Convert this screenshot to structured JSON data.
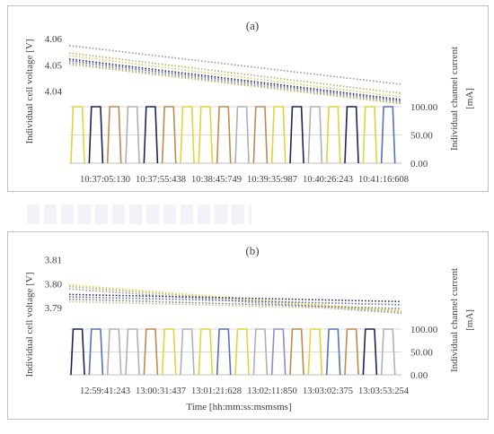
{
  "chart_data": [
    {
      "type": "line",
      "title": "(a)",
      "ylabel": "Individual cell voltage [V]",
      "y2label_line1": "Individual channel current",
      "y2label_line2": "[mA]",
      "xlabel": "",
      "voltage_ticks": [
        "4.06",
        "4.05",
        "4.04"
      ],
      "voltage_range": [
        4.028,
        4.062
      ],
      "current_ticks": [
        "100.00",
        "50.00",
        "0.00"
      ],
      "current_range": [
        0,
        100
      ],
      "x_ticks": [
        "10:37:05:130",
        "10:37:55:438",
        "10:38:45:749",
        "10:39:35:987",
        "10:40:26:243",
        "10:41:16:608"
      ],
      "voltage_series": [
        {
          "color": "#9e8fa6",
          "start": 4.0573,
          "end": 4.0426
        },
        {
          "color": "#b8ac6e",
          "start": 4.0545,
          "end": 4.0392
        },
        {
          "color": "#d6cf5a",
          "start": 4.0535,
          "end": 4.0378
        },
        {
          "color": "#1f2a5c",
          "start": 4.0522,
          "end": 4.0368
        },
        {
          "color": "#5566a8",
          "start": 4.0515,
          "end": 4.0362
        },
        {
          "color": "#9a9a9a",
          "start": 4.0508,
          "end": 4.0356
        },
        {
          "color": "#c9b25a",
          "start": 4.0502,
          "end": 4.0352
        }
      ],
      "current_pulse_colors": [
        "#e3d33a",
        "#1a2456",
        "#c08a4e",
        "#b1b1b1",
        "#1a2456",
        "#c08a4e",
        "#e3d33a",
        "#e3d33a",
        "#c08a4e",
        "#b1b1b1",
        "#c08a4e",
        "#e3d33a",
        "#1a2456",
        "#b1b1b1",
        "#e3d33a",
        "#1a2456",
        "#e3d33a",
        "#5572b8"
      ],
      "current_pulse_value": 100
    },
    {
      "type": "line",
      "title": "(b)",
      "ylabel": "Individual cell voltage [V]",
      "y2label_line1": "Individual channel current",
      "y2label_line2": "[mA]",
      "xlabel": "Time [hh:mm:ss:msmsms]",
      "voltage_ticks": [
        "3.81",
        "3.80",
        "3.79"
      ],
      "voltage_range": [
        3.7855,
        3.8125
      ],
      "current_ticks": [
        "100.00",
        "50.00",
        "0.00"
      ],
      "current_range": [
        0,
        100
      ],
      "x_ticks": [
        "12:59:41:243",
        "13:00:31:437",
        "13:01:21:628",
        "13:02:11:850",
        "13:03:02:375",
        "13:03:53:254"
      ],
      "voltage_series": [
        {
          "color": "#e3d33a",
          "start": 3.7995,
          "end": 3.7885
        },
        {
          "color": "#b8ac6e",
          "start": 3.7988,
          "end": 3.788
        },
        {
          "color": "#9a9a9a",
          "start": 3.7978,
          "end": 3.7876
        },
        {
          "color": "#1a2456",
          "start": 3.7955,
          "end": 3.7925
        },
        {
          "color": "#5566a8",
          "start": 3.7945,
          "end": 3.7912
        },
        {
          "color": "#7d7d7d",
          "start": 3.7935,
          "end": 3.7896
        },
        {
          "color": "#c0c09a",
          "start": 3.7925,
          "end": 3.789
        }
      ],
      "current_pulse_colors": [
        "#1a2456",
        "#5572b8",
        "#b1b1b1",
        "#b1b1b1",
        "#c08a4e",
        "#e3d33a",
        "#b1b1b1",
        "#e3d33a",
        "#5572b8",
        "#e3d33a",
        "#b1b1b1",
        "#9a86c8",
        "#c08a4e",
        "#e3d33a",
        "#5572b8",
        "#c08a4e",
        "#1a2456",
        "#b1b1b1"
      ],
      "current_pulse_value": 100
    }
  ]
}
